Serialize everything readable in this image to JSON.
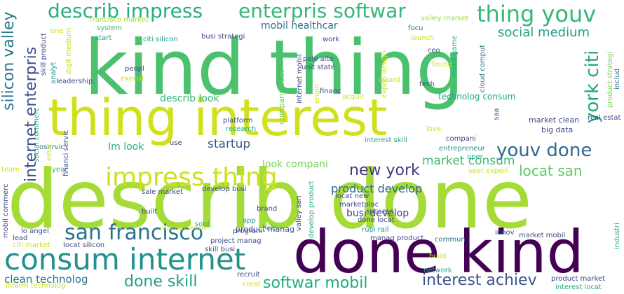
{
  "words": [
    {
      "text": "describ done"
    },
    {
      "text": "kind thing"
    },
    {
      "text": "thing interest"
    },
    {
      "text": "done kind"
    },
    {
      "text": "consum internet"
    },
    {
      "text": "impress thing"
    },
    {
      "text": "describ impress"
    },
    {
      "text": "enterpris softwar"
    },
    {
      "text": "thing youv"
    },
    {
      "text": "san francisco"
    },
    {
      "text": "youv done"
    },
    {
      "text": "york citi"
    },
    {
      "text": "done skill"
    },
    {
      "text": "softwar mobil"
    },
    {
      "text": "interest achiev"
    },
    {
      "text": "silicon valley"
    },
    {
      "text": "internet enterpris"
    },
    {
      "text": "new york"
    },
    {
      "text": "locat san"
    },
    {
      "text": "social medium"
    },
    {
      "text": "market consum"
    },
    {
      "text": "startup"
    },
    {
      "text": "mobil healthcar"
    },
    {
      "text": "product develop"
    },
    {
      "text": "look compani"
    },
    {
      "text": "clean technolog"
    },
    {
      "text": "Im look"
    },
    {
      "text": "busi develop"
    },
    {
      "text": "describ look"
    },
    {
      "text": "technolog consum"
    },
    {
      "text": "big data"
    },
    {
      "text": "market clean"
    },
    {
      "text": "product manag"
    },
    {
      "text": "compani locat"
    },
    {
      "text": "palo alto"
    },
    {
      "text": "unit state"
    },
    {
      "text": "citi silicon"
    },
    {
      "text": "busi strategi"
    },
    {
      "text": "francisco market"
    },
    {
      "text": "system"
    },
    {
      "text": "start"
    },
    {
      "text": "peopl"
    },
    {
      "text": "execut"
    },
    {
      "text": "leadership"
    },
    {
      "text": "work"
    },
    {
      "text": "focu"
    },
    {
      "text": "launch"
    },
    {
      "text": "valley market"
    },
    {
      "text": "ceo"
    },
    {
      "text": "found"
    },
    {
      "text": "tech"
    },
    {
      "text": "award"
    },
    {
      "text": "financ"
    },
    {
      "text": "acquir"
    },
    {
      "text": "one"
    },
    {
      "text": "skill product"
    },
    {
      "text": "analyt"
    },
    {
      "text": "digit medium"
    },
    {
      "text": "engin"
    },
    {
      "text": "internet mobil"
    },
    {
      "text": "experi design"
    },
    {
      "text": "mobil game"
    },
    {
      "text": "cloud comput"
    },
    {
      "text": "product strategi"
    },
    {
      "text": "includ"
    },
    {
      "text": "real estat"
    },
    {
      "text": "love"
    },
    {
      "text": "compani"
    },
    {
      "text": "entrepreneur"
    },
    {
      "text": "oper"
    },
    {
      "text": "user experi"
    },
    {
      "text": "interest skill"
    },
    {
      "text": "saa"
    },
    {
      "text": "platform"
    },
    {
      "text": "research"
    },
    {
      "text": "use"
    },
    {
      "text": "year"
    },
    {
      "text": "team"
    },
    {
      "text": "oservic"
    },
    {
      "text": "educ"
    },
    {
      "text": "social commerc"
    },
    {
      "text": "financi servic"
    },
    {
      "text": "develop busi"
    },
    {
      "text": "sale market"
    },
    {
      "text": "built"
    },
    {
      "text": "locat new"
    },
    {
      "text": "marketplac"
    },
    {
      "text": "success"
    },
    {
      "text": "brand"
    },
    {
      "text": "machin learn"
    },
    {
      "text": "sold"
    },
    {
      "text": "app"
    },
    {
      "text": "program"
    },
    {
      "text": "help"
    },
    {
      "text": "valley san"
    },
    {
      "text": "develop product"
    },
    {
      "text": "done locat"
    },
    {
      "text": "rubi rail"
    },
    {
      "text": "manag product"
    },
    {
      "text": "project manag"
    },
    {
      "text": "skill busi"
    },
    {
      "text": "commun"
    },
    {
      "text": "innov"
    },
    {
      "text": "market mobil"
    },
    {
      "text": "industri"
    },
    {
      "text": "build"
    },
    {
      "text": "network"
    },
    {
      "text": "product market"
    },
    {
      "text": "interest locat"
    },
    {
      "text": "recruit"
    },
    {
      "text": "creat"
    },
    {
      "text": "inform technolog"
    },
    {
      "text": "citi market"
    },
    {
      "text": "locat silicon"
    },
    {
      "text": "lo angel"
    },
    {
      "text": "lead"
    },
    {
      "text": "mobil commerc"
    }
  ]
}
